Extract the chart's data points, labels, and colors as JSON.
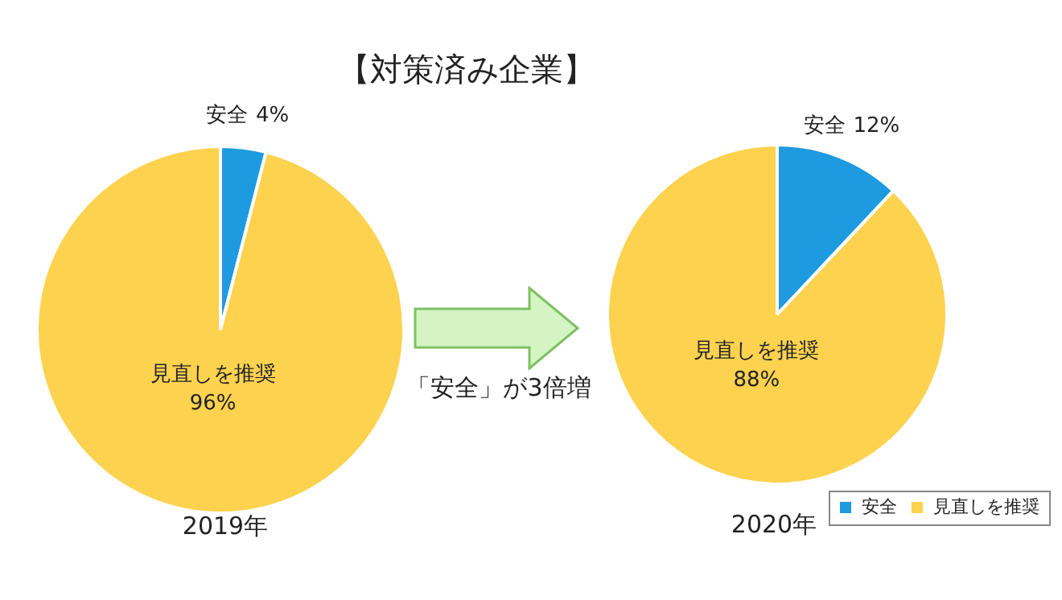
{
  "chart_data": [
    {
      "type": "pie",
      "title": "【対策済み企業】",
      "categories": [
        "安全",
        "見直しを推奨"
      ],
      "values": [
        4,
        96
      ],
      "value_labels": [
        "4%",
        "96%"
      ],
      "colors": [
        "#1e9ae0",
        "#fdd24f"
      ],
      "xlabel": "2019年",
      "annotations": [
        "「安全」が3倍増"
      ]
    },
    {
      "type": "pie",
      "categories": [
        "安全",
        "見直しを推奨"
      ],
      "values": [
        12,
        88
      ],
      "value_labels": [
        "12%",
        "88%"
      ],
      "colors": [
        "#1e9ae0",
        "#fdd24f"
      ],
      "xlabel": "2020年",
      "legend": "bottom right"
    }
  ]
}
